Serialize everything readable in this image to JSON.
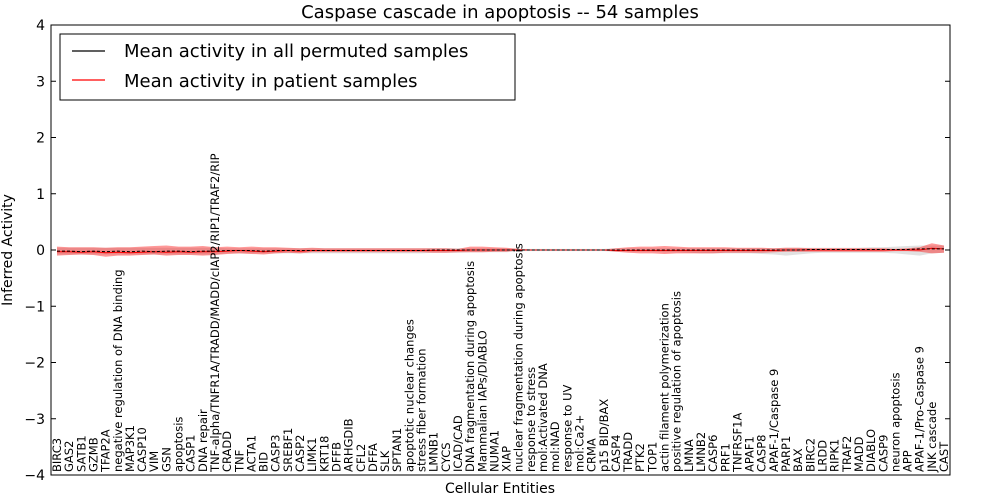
{
  "chart_data": {
    "type": "line",
    "title": "Caspase cascade in apoptosis -- 54 samples",
    "xlabel": "Cellular Entities",
    "ylabel": "Inferred Activity",
    "ylim": [
      -4,
      4
    ],
    "yticks": [
      4,
      3,
      2,
      1,
      0,
      -1,
      -2,
      -3,
      -4
    ],
    "ytick_labels": [
      "4",
      "3",
      "2",
      "1",
      "0",
      "−1",
      "−2",
      "−3",
      "−4"
    ],
    "legend_position": "top-left",
    "categories": [
      "BIRC3",
      "GAS2",
      "SATB1",
      "GZMB",
      "TFAP2A",
      "negative regulation of DNA binding",
      "MAP3K1",
      "CASP10",
      "VIM",
      "GSN",
      "apoptosis",
      "CASP1",
      "DNA repair",
      "TNF-alpha/TNFR1A/TRADD/MADD/cIAP2/RIP1/TRAF2/RIP",
      "CRADD",
      "TNF",
      "ACTA1",
      "BID",
      "CASP3",
      "SREBF1",
      "CASP2",
      "LIMK1",
      "KRT18",
      "DFFB",
      "ARHGDIB",
      "CFL2",
      "DFFA",
      "SLK",
      "SPTAN1",
      "apoptotic nuclear changes",
      "stress fiber formation",
      "LMNB1",
      "CYCS",
      "ICAD/CAD",
      "DNA fragmentation during apoptosis",
      "Mammalian IAPs/DIABLO",
      "NUMA1",
      "XIAP",
      "nuclear fragmentation during apoptosis",
      "response to stress",
      "mol:Activated DNA",
      "mol:NAD",
      "response to UV",
      "mol:Ca2+",
      "CRMA",
      "p15 BID/BAX",
      "CASP4",
      "TRADD",
      "PTK2",
      "TOP1",
      "actin filament polymerization",
      "positive regulation of apoptosis",
      "LMNA",
      "LMNB2",
      "CASP6",
      "PRF1",
      "TNFRSF1A",
      "APAF1",
      "CASP8",
      "APAF-1/Caspase 9",
      "PARP1",
      "BAX",
      "BIRC2",
      "LRDD",
      "RIPK1",
      "TRAF2",
      "MADD",
      "DIABLO",
      "CASP9",
      "neuron apoptosis",
      "APP",
      "APAF-1/Pro-Caspase 9",
      "JNK cascade",
      "CAST"
    ],
    "series": [
      {
        "name": "Mean activity in all permuted samples",
        "color": "#000000",
        "values": [
          -0.02,
          -0.02,
          -0.03,
          -0.02,
          -0.03,
          -0.02,
          -0.03,
          -0.02,
          -0.03,
          -0.02,
          -0.02,
          -0.03,
          -0.02,
          -0.02,
          -0.01,
          -0.01,
          -0.01,
          -0.02,
          -0.01,
          -0.01,
          -0.01,
          -0.01,
          -0.01,
          -0.01,
          -0.01,
          -0.01,
          -0.01,
          -0.01,
          -0.01,
          -0.01,
          -0.01,
          0.0,
          0.0,
          0.0,
          0.0,
          0.0,
          0.0,
          0.0,
          0.0,
          0.0,
          0.0,
          0.0,
          0.0,
          0.0,
          0.0,
          0.0,
          0.0,
          0.0,
          0.0,
          0.0,
          0.0,
          0.0,
          0.0,
          0.0,
          0.0,
          0.0,
          0.0,
          0.0,
          0.0,
          0.0,
          0.0,
          0.0,
          0.01,
          0.01,
          0.01,
          0.01,
          0.01,
          0.01,
          0.01,
          0.01,
          0.01,
          0.02,
          0.02,
          0.02
        ]
      },
      {
        "name": "Mean activity in patient samples",
        "color": "#ff0000",
        "values": [
          -0.03,
          -0.03,
          -0.04,
          -0.03,
          -0.05,
          -0.04,
          -0.05,
          -0.04,
          -0.03,
          -0.04,
          -0.03,
          -0.04,
          -0.03,
          -0.03,
          -0.02,
          -0.01,
          -0.02,
          -0.03,
          -0.02,
          -0.01,
          -0.02,
          -0.01,
          -0.01,
          -0.01,
          -0.01,
          -0.01,
          -0.01,
          -0.01,
          -0.01,
          -0.01,
          -0.01,
          -0.01,
          -0.01,
          -0.01,
          0.0,
          0.0,
          0.0,
          0.0,
          0.0,
          0.0,
          0.0,
          0.0,
          0.0,
          0.0,
          0.0,
          0.0,
          -0.01,
          -0.01,
          -0.01,
          -0.01,
          -0.01,
          -0.01,
          -0.01,
          -0.01,
          -0.01,
          -0.01,
          -0.01,
          -0.01,
          -0.01,
          -0.01,
          0.0,
          0.0,
          0.0,
          0.0,
          0.0,
          0.0,
          0.0,
          0.0,
          0.0,
          0.0,
          0.0,
          0.0,
          0.03,
          0.02
        ],
        "band_upper": [
          0.06,
          0.05,
          0.05,
          0.05,
          0.04,
          0.05,
          0.05,
          0.06,
          0.07,
          0.08,
          0.06,
          0.06,
          0.07,
          0.05,
          0.06,
          0.05,
          0.06,
          0.05,
          0.05,
          0.04,
          0.03,
          0.04,
          0.03,
          0.03,
          0.03,
          0.03,
          0.03,
          0.03,
          0.03,
          0.03,
          0.03,
          0.03,
          0.03,
          0.02,
          0.06,
          0.06,
          0.05,
          0.04,
          0.02,
          0.01,
          0.01,
          0.01,
          0.01,
          0.01,
          0.01,
          0.01,
          0.03,
          0.05,
          0.06,
          0.06,
          0.07,
          0.06,
          0.05,
          0.05,
          0.05,
          0.05,
          0.04,
          0.04,
          0.04,
          0.03,
          0.04,
          0.04,
          0.03,
          0.03,
          0.03,
          0.03,
          0.03,
          0.03,
          0.03,
          0.02,
          0.03,
          0.05,
          0.12,
          0.08
        ],
        "band_lower": [
          -0.1,
          -0.09,
          -0.08,
          -0.09,
          -0.12,
          -0.1,
          -0.1,
          -0.09,
          -0.08,
          -0.1,
          -0.09,
          -0.09,
          -0.1,
          -0.09,
          -0.07,
          -0.06,
          -0.07,
          -0.08,
          -0.06,
          -0.05,
          -0.06,
          -0.04,
          -0.04,
          -0.04,
          -0.04,
          -0.04,
          -0.04,
          -0.04,
          -0.04,
          -0.04,
          -0.04,
          -0.05,
          -0.05,
          -0.04,
          -0.04,
          -0.04,
          -0.03,
          -0.03,
          -0.01,
          -0.01,
          -0.01,
          -0.01,
          -0.01,
          -0.01,
          -0.01,
          -0.01,
          -0.03,
          -0.05,
          -0.06,
          -0.06,
          -0.07,
          -0.06,
          -0.06,
          -0.06,
          -0.06,
          -0.05,
          -0.05,
          -0.05,
          -0.05,
          -0.04,
          -0.03,
          -0.03,
          -0.03,
          -0.03,
          -0.03,
          -0.03,
          -0.03,
          -0.03,
          -0.03,
          -0.02,
          -0.02,
          -0.03,
          -0.06,
          -0.05
        ]
      }
    ],
    "permuted_band": {
      "color": "#d9d9d9",
      "upper": [
        0.04,
        0.04,
        0.04,
        0.04,
        0.04,
        0.04,
        0.04,
        0.04,
        0.04,
        0.04,
        0.04,
        0.04,
        0.04,
        0.04,
        0.03,
        0.03,
        0.03,
        0.03,
        0.03,
        0.03,
        0.03,
        0.03,
        0.03,
        0.03,
        0.03,
        0.03,
        0.03,
        0.03,
        0.03,
        0.03,
        0.03,
        0.03,
        0.03,
        0.03,
        0.03,
        0.03,
        0.03,
        0.03,
        0.02,
        0.02,
        0.02,
        0.02,
        0.02,
        0.02,
        0.02,
        0.02,
        0.03,
        0.03,
        0.03,
        0.03,
        0.03,
        0.03,
        0.03,
        0.03,
        0.03,
        0.03,
        0.03,
        0.03,
        0.03,
        0.03,
        0.04,
        0.04,
        0.04,
        0.04,
        0.04,
        0.04,
        0.04,
        0.05,
        0.05,
        0.06,
        0.07,
        0.08,
        0.08,
        0.08
      ],
      "lower": [
        -0.08,
        -0.08,
        -0.08,
        -0.08,
        -0.08,
        -0.08,
        -0.08,
        -0.08,
        -0.08,
        -0.08,
        -0.08,
        -0.08,
        -0.08,
        -0.08,
        -0.06,
        -0.06,
        -0.06,
        -0.06,
        -0.06,
        -0.06,
        -0.06,
        -0.06,
        -0.06,
        -0.06,
        -0.06,
        -0.06,
        -0.06,
        -0.06,
        -0.06,
        -0.06,
        -0.06,
        -0.05,
        -0.05,
        -0.05,
        -0.04,
        -0.04,
        -0.04,
        -0.04,
        -0.02,
        -0.02,
        -0.02,
        -0.02,
        -0.02,
        -0.02,
        -0.02,
        -0.02,
        -0.03,
        -0.03,
        -0.03,
        -0.03,
        -0.04,
        -0.04,
        -0.05,
        -0.06,
        -0.06,
        -0.06,
        -0.06,
        -0.06,
        -0.07,
        -0.08,
        -0.1,
        -0.08,
        -0.06,
        -0.05,
        -0.05,
        -0.05,
        -0.05,
        -0.05,
        -0.05,
        -0.06,
        -0.08,
        -0.1,
        -0.06,
        -0.05
      ]
    }
  }
}
